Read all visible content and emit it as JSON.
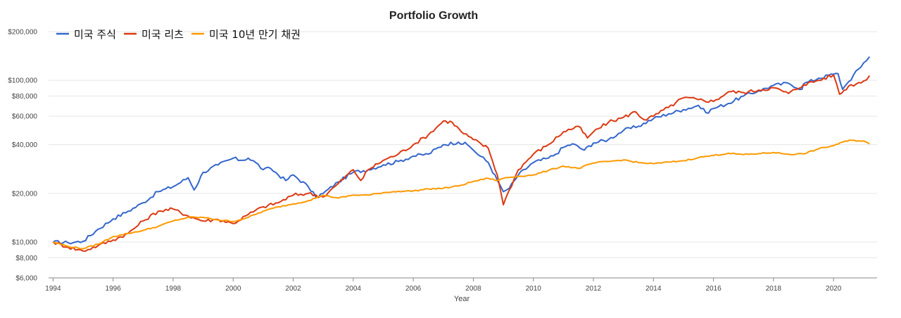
{
  "chart_data": {
    "type": "line",
    "title": "Portfolio Growth",
    "xlabel": "Year",
    "ylabel": "",
    "yscale": "log",
    "ylim": [
      6000,
      200000
    ],
    "xlim": [
      1994,
      2021.3
    ],
    "yticks": [
      6000,
      8000,
      10000,
      20000,
      40000,
      60000,
      80000,
      100000,
      200000
    ],
    "ytick_labels": [
      "$6,000",
      "$8,000",
      "$10,000",
      "$20,000",
      "$40,000",
      "$60,000",
      "$80,000",
      "$100,000",
      "$200,000"
    ],
    "xticks": [
      1994,
      1996,
      1998,
      2000,
      2002,
      2004,
      2006,
      2008,
      2010,
      2012,
      2014,
      2016,
      2018,
      2020
    ],
    "xtick_labels": [
      "1994",
      "1996",
      "1998",
      "2000",
      "2002",
      "2004",
      "2006",
      "2008",
      "2010",
      "2012",
      "2014",
      "2016",
      "2018",
      "2020"
    ],
    "grid": true,
    "legend_position": "top-left",
    "series": [
      {
        "name": "미국 주식",
        "color": "#3366cc",
        "x": [
          1994,
          1994.5,
          1995,
          1995.5,
          1996,
          1996.5,
          1997,
          1997.5,
          1998,
          1998.5,
          1998.7,
          1999,
          1999.5,
          2000,
          2000.25,
          2000.5,
          2000.75,
          2001,
          2001.25,
          2001.75,
          2002,
          2002.5,
          2002.75,
          2003,
          2003.5,
          2004,
          2004.5,
          2005,
          2005.5,
          2006,
          2006.5,
          2007,
          2007.5,
          2007.8,
          2008,
          2008.5,
          2008.8,
          2009,
          2009.2,
          2009.5,
          2010,
          2010.5,
          2010.75,
          2011,
          2011.3,
          2011.7,
          2012,
          2012.5,
          2013,
          2013.5,
          2014,
          2014.5,
          2015,
          2015.5,
          2015.75,
          2016,
          2016.5,
          2017,
          2017.5,
          2018,
          2018.5,
          2018.95,
          2019,
          2019.5,
          2020,
          2020.15,
          2020.3,
          2020.5,
          2021,
          2021.2
        ],
        "values": [
          10000,
          9900,
          10100,
          12000,
          13900,
          15500,
          17500,
          20500,
          22000,
          25000,
          21000,
          27000,
          30000,
          33000,
          32000,
          33000,
          31000,
          28000,
          28500,
          24000,
          26000,
          22000,
          19000,
          20000,
          23500,
          27000,
          28000,
          30000,
          31500,
          34000,
          35000,
          40000,
          41500,
          40000,
          37000,
          31000,
          24000,
          20500,
          21500,
          26000,
          31000,
          33000,
          35000,
          38500,
          40500,
          37000,
          41000,
          43000,
          49000,
          52000,
          58000,
          62000,
          66000,
          70000,
          63000,
          67000,
          72000,
          80000,
          86000,
          93000,
          96000,
          88000,
          95000,
          103000,
          109000,
          110000,
          88000,
          98000,
          128000,
          140000
        ]
      },
      {
        "name": "미국 리츠",
        "color": "#dc3912",
        "x": [
          1994,
          1994.5,
          1995,
          1995.5,
          1996,
          1996.5,
          1997,
          1997.5,
          1998,
          1998.5,
          1999,
          1999.5,
          2000,
          2000.5,
          2001,
          2001.5,
          2002,
          2002.5,
          2003,
          2003.5,
          2004,
          2004.25,
          2004.5,
          2005,
          2005.5,
          2006,
          2006.5,
          2007,
          2007.3,
          2007.6,
          2008,
          2008.5,
          2008.8,
          2009,
          2009.2,
          2009.5,
          2010,
          2010.5,
          2011,
          2011.5,
          2011.8,
          2012,
          2012.5,
          2013,
          2013.4,
          2013.7,
          2014,
          2014.5,
          2015,
          2015.5,
          2016,
          2016.5,
          2017,
          2017.5,
          2018,
          2018.5,
          2019,
          2019.5,
          2020,
          2020.2,
          2020.5,
          2021,
          2021.2
        ],
        "values": [
          10000,
          9300,
          8800,
          9500,
          10300,
          11300,
          13500,
          15500,
          16000,
          14500,
          13500,
          13800,
          13000,
          14800,
          16500,
          17500,
          19500,
          20000,
          19000,
          23000,
          28000,
          24000,
          28000,
          32000,
          35000,
          40000,
          46000,
          56000,
          55000,
          48000,
          43000,
          38000,
          26000,
          17000,
          21000,
          28000,
          35000,
          40000,
          48000,
          52000,
          44000,
          48000,
          55000,
          59000,
          64000,
          57000,
          60000,
          68000,
          78000,
          76000,
          74000,
          85000,
          84000,
          87000,
          90000,
          83000,
          94000,
          100000,
          108000,
          82000,
          92000,
          99000,
          107000
        ]
      },
      {
        "name": "미국 10년 만기 채권",
        "color": "#ff9900",
        "x": [
          1994,
          1994.5,
          1995,
          1995.5,
          1996,
          1996.5,
          1997,
          1997.5,
          1998,
          1998.5,
          1999,
          1999.5,
          2000,
          2000.5,
          2001,
          2001.5,
          2002,
          2002.5,
          2003,
          2003.5,
          2004,
          2004.5,
          2005,
          2005.5,
          2006,
          2006.5,
          2007,
          2007.5,
          2008,
          2008.5,
          2008.8,
          2009,
          2009.5,
          2010,
          2010.5,
          2011,
          2011.5,
          2012,
          2012.5,
          2013,
          2013.5,
          2014,
          2014.5,
          2015,
          2015.5,
          2016,
          2016.5,
          2017,
          2017.5,
          2018,
          2018.5,
          2019,
          2019.5,
          2020,
          2020.3,
          2020.6,
          2021,
          2021.2
        ],
        "values": [
          10000,
          9400,
          9100,
          9700,
          10800,
          11300,
          11800,
          12500,
          13500,
          14200,
          14200,
          13700,
          13400,
          14200,
          15500,
          16500,
          17200,
          18000,
          19500,
          18700,
          19500,
          19500,
          20200,
          20600,
          20700,
          21300,
          21500,
          22200,
          23700,
          24800,
          24000,
          24800,
          25500,
          26000,
          27700,
          29500,
          28500,
          30800,
          31500,
          32200,
          31000,
          30500,
          31200,
          31800,
          33300,
          34300,
          35400,
          34700,
          35200,
          35800,
          34900,
          35100,
          37700,
          39500,
          41500,
          42600,
          42200,
          40500
        ]
      }
    ]
  }
}
